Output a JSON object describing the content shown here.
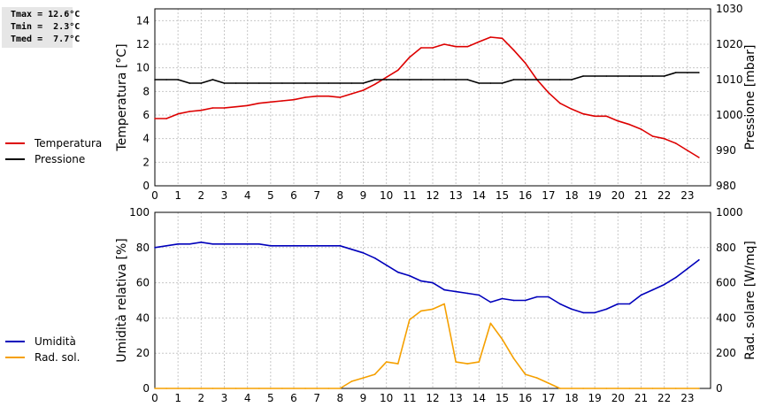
{
  "stats": {
    "lines": [
      "Tmax = 12.6°C",
      "Tmin =  2.3°C",
      "Tmed =  7.7°C"
    ]
  },
  "colors": {
    "temperature": "#dd0000",
    "pressure": "#000000",
    "humidity": "#0000bb",
    "solar": "#f5a000",
    "grid": "#c8c8c8"
  },
  "chart_data": [
    {
      "type": "line",
      "grid": true,
      "legend_position": "left",
      "x_ticks": [
        "0",
        "1",
        "2",
        "3",
        "4",
        "5",
        "6",
        "7",
        "8",
        "9",
        "10",
        "11",
        "12",
        "13",
        "14",
        "15",
        "16",
        "17",
        "18",
        "19",
        "20",
        "21",
        "22",
        "23"
      ],
      "xlim": [
        0,
        24
      ],
      "ylabel": "Temperatura [°C]",
      "ylim": [
        0,
        15
      ],
      "y_ticks": [
        "0",
        "2",
        "4",
        "6",
        "8",
        "10",
        "12",
        "14"
      ],
      "y2label": "Pressione [mbar]",
      "y2lim": [
        980,
        1030
      ],
      "y2_ticks": [
        "980",
        "990",
        "1000",
        "1010",
        "1020",
        "1030"
      ],
      "series": [
        {
          "name": "Temperatura",
          "axis": "left",
          "color_key": "temperature",
          "x": [
            0,
            0.5,
            1,
            1.5,
            2,
            2.5,
            3,
            3.5,
            4,
            4.5,
            5,
            5.5,
            6,
            6.5,
            7,
            7.5,
            8,
            8.5,
            9,
            9.5,
            10,
            10.5,
            11,
            11.5,
            12,
            12.5,
            13,
            13.5,
            14,
            14.5,
            15,
            15.5,
            16,
            16.5,
            17,
            17.5,
            18,
            18.5,
            19,
            19.5,
            20,
            20.5,
            21,
            21.5,
            22,
            22.5,
            23,
            23.5
          ],
          "values": [
            5.7,
            5.7,
            6.1,
            6.3,
            6.4,
            6.6,
            6.6,
            6.7,
            6.8,
            7.0,
            7.1,
            7.2,
            7.3,
            7.5,
            7.6,
            7.6,
            7.5,
            7.8,
            8.1,
            8.6,
            9.2,
            9.8,
            10.9,
            11.7,
            11.7,
            12.0,
            11.8,
            11.8,
            12.2,
            12.6,
            12.5,
            11.5,
            10.4,
            9.0,
            7.9,
            7.0,
            6.5,
            6.1,
            5.9,
            5.9,
            5.5,
            5.2,
            4.8,
            4.2,
            4.0,
            3.6,
            3.0,
            2.4
          ]
        },
        {
          "name": "Pressione",
          "axis": "right",
          "color_key": "pressure",
          "x": [
            0,
            0.5,
            1,
            1.5,
            2,
            2.5,
            3,
            3.5,
            4,
            4.5,
            5,
            5.5,
            6,
            6.5,
            7,
            7.5,
            8,
            8.5,
            9,
            9.5,
            10,
            10.5,
            11,
            11.5,
            12,
            12.5,
            13,
            13.5,
            14,
            14.5,
            15,
            15.5,
            16,
            16.5,
            17,
            17.5,
            18,
            18.5,
            19,
            19.5,
            20,
            20.5,
            21,
            21.5,
            22,
            22.5,
            23,
            23.5
          ],
          "values": [
            1010,
            1010,
            1010,
            1009,
            1009,
            1010,
            1009,
            1009,
            1009,
            1009,
            1009,
            1009,
            1009,
            1009,
            1009,
            1009,
            1009,
            1009,
            1009,
            1010,
            1010,
            1010,
            1010,
            1010,
            1010,
            1010,
            1010,
            1010,
            1009,
            1009,
            1009,
            1010,
            1010,
            1010,
            1010,
            1010,
            1010,
            1011,
            1011,
            1011,
            1011,
            1011,
            1011,
            1011,
            1011,
            1012,
            1012,
            1012
          ]
        }
      ]
    },
    {
      "type": "line",
      "grid": true,
      "legend_position": "left",
      "x_ticks": [
        "0",
        "1",
        "2",
        "3",
        "4",
        "5",
        "6",
        "7",
        "8",
        "9",
        "10",
        "11",
        "12",
        "13",
        "14",
        "15",
        "16",
        "17",
        "18",
        "19",
        "20",
        "21",
        "22",
        "23"
      ],
      "xlim": [
        0,
        24
      ],
      "ylabel": "Umidità relativa [%]",
      "ylim": [
        0,
        100
      ],
      "y_ticks": [
        "0",
        "20",
        "40",
        "60",
        "80",
        "100"
      ],
      "y2label": "Rad. solare [W/mq]",
      "y2lim": [
        0,
        1000
      ],
      "y2_ticks": [
        "0",
        "200",
        "400",
        "600",
        "800",
        "1000"
      ],
      "series": [
        {
          "name": "Umidità",
          "axis": "left",
          "color_key": "humidity",
          "x": [
            0,
            0.5,
            1,
            1.5,
            2,
            2.5,
            3,
            3.5,
            4,
            4.5,
            5,
            5.5,
            6,
            6.5,
            7,
            7.5,
            8,
            8.5,
            9,
            9.5,
            10,
            10.5,
            11,
            11.5,
            12,
            12.5,
            13,
            13.5,
            14,
            14.5,
            15,
            15.5,
            16,
            16.5,
            17,
            17.5,
            18,
            18.5,
            19,
            19.5,
            20,
            20.5,
            21,
            21.5,
            22,
            22.5,
            23,
            23.5
          ],
          "values": [
            80,
            81,
            82,
            82,
            83,
            82,
            82,
            82,
            82,
            82,
            81,
            81,
            81,
            81,
            81,
            81,
            81,
            79,
            77,
            74,
            70,
            66,
            64,
            61,
            60,
            56,
            55,
            54,
            53,
            49,
            51,
            50,
            50,
            52,
            52,
            48,
            45,
            43,
            43,
            45,
            48,
            48,
            53,
            56,
            59,
            63,
            68,
            73
          ]
        },
        {
          "name": "Rad. sol.",
          "axis": "right",
          "color_key": "solar",
          "x": [
            0,
            0.5,
            1,
            1.5,
            2,
            2.5,
            3,
            3.5,
            4,
            4.5,
            5,
            5.5,
            6,
            6.5,
            7,
            7.5,
            8,
            8.5,
            9,
            9.5,
            10,
            10.5,
            11,
            11.5,
            12,
            12.5,
            13,
            13.5,
            14,
            14.5,
            15,
            15.5,
            16,
            16.5,
            17,
            17.5,
            18,
            18.5,
            19,
            19.5,
            20,
            20.5,
            21,
            21.5,
            22,
            22.5,
            23,
            23.5
          ],
          "values": [
            0,
            0,
            0,
            0,
            0,
            0,
            0,
            0,
            0,
            0,
            0,
            0,
            0,
            0,
            0,
            0,
            0,
            40,
            60,
            80,
            150,
            140,
            390,
            440,
            450,
            480,
            150,
            140,
            150,
            370,
            280,
            170,
            80,
            60,
            30,
            0,
            0,
            0,
            0,
            0,
            0,
            0,
            0,
            0,
            0,
            0,
            0,
            0
          ]
        }
      ]
    }
  ]
}
